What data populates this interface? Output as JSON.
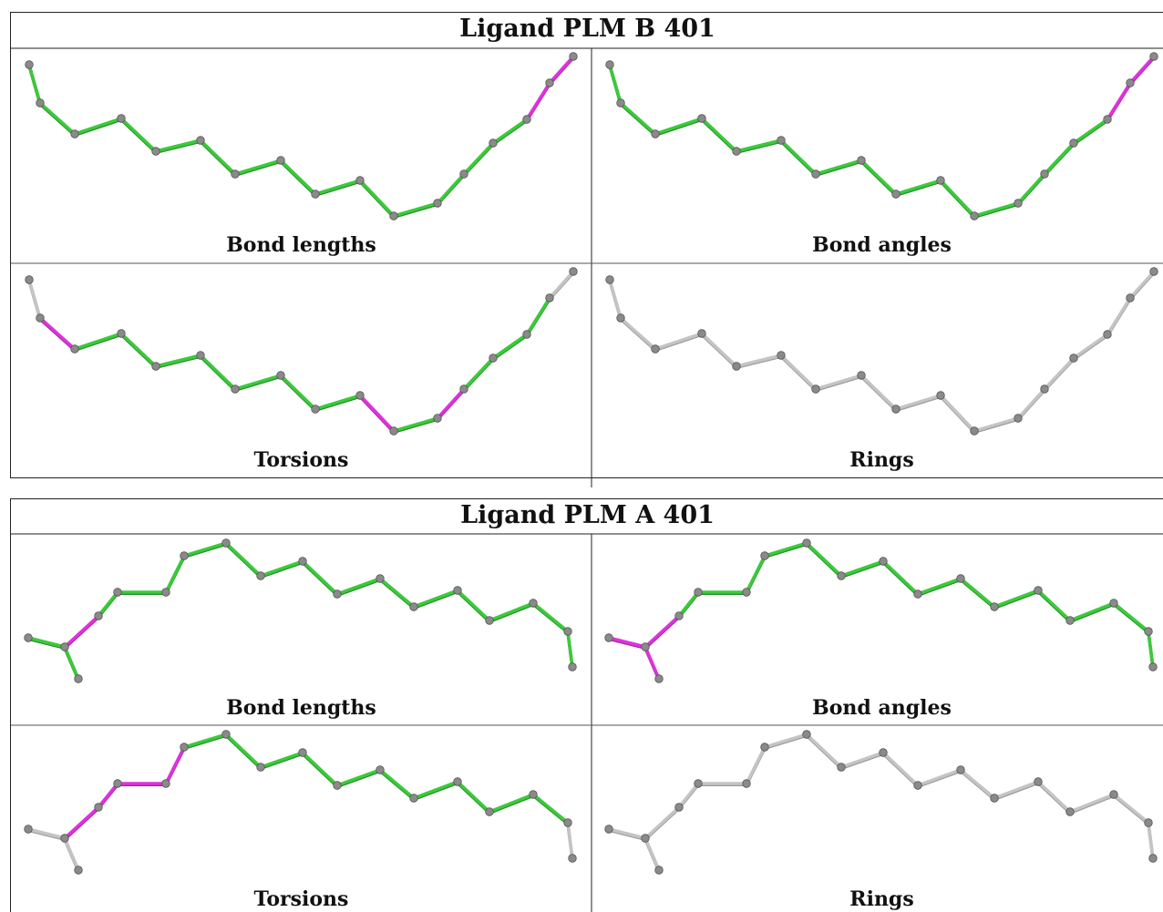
{
  "figures": [
    {
      "id": "block-b",
      "title": "Ligand PLM B 401",
      "panels": [
        {
          "caption": "Bond lengths",
          "coloring": "bond-lengths"
        },
        {
          "caption": "Bond angles",
          "coloring": "bond-angles"
        },
        {
          "caption": "Torsions",
          "coloring": "torsions"
        },
        {
          "caption": "Rings",
          "coloring": "rings"
        }
      ]
    },
    {
      "id": "block-a",
      "title": "Ligand PLM A 401",
      "panels": [
        {
          "caption": "Bond lengths",
          "coloring": "bond-lengths"
        },
        {
          "caption": "Bond angles",
          "coloring": "bond-angles"
        },
        {
          "caption": "Torsions",
          "coloring": "torsions"
        },
        {
          "caption": "Rings",
          "coloring": "rings"
        }
      ]
    }
  ],
  "colors": {
    "ok_bond": "#3cc93c",
    "ok_bond_dark": "#1f8f1f",
    "outlier_bond": "#dd33dd",
    "neutral_bond": "#c4c4c4",
    "atom": "#8a8a8a",
    "atom_edge": "#555555",
    "frame": "#222222"
  }
}
